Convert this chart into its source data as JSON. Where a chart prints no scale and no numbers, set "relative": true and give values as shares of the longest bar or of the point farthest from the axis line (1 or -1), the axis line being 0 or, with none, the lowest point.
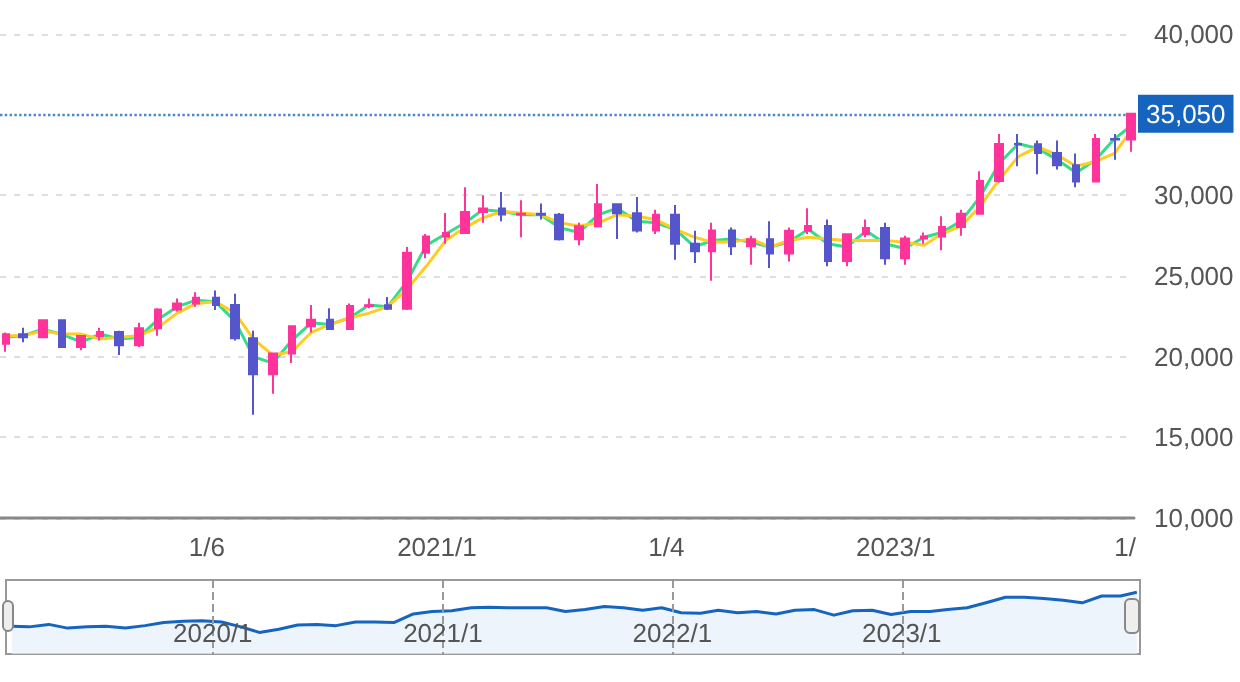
{
  "chart_data": [
    {
      "type": "candlestick",
      "x": [
        "2019-02-15",
        "2019-03-15",
        "2019-04-15",
        "2019-05-15",
        "2019-06-15",
        "2019-07-15",
        "2019-08-15",
        "2019-09-15",
        "2019-10-15",
        "2019-11-15",
        "2019-12-15",
        "2020-01-15",
        "2020-02-15",
        "2020-03-15",
        "2020-04-15",
        "2020-05-15",
        "2020-06-15",
        "2020-07-15",
        "2020-08-15",
        "2020-09-15",
        "2020-10-15",
        "2020-11-15",
        "2020-12-15",
        "2021-01-15",
        "2021-02-15",
        "2021-03-15",
        "2021-04-15",
        "2021-05-15",
        "2021-06-15",
        "2021-07-15",
        "2021-08-15",
        "2021-09-15",
        "2021-10-15",
        "2021-11-15",
        "2021-12-15",
        "2022-01-15",
        "2022-02-15",
        "2022-03-15",
        "2022-04-15",
        "2022-05-15",
        "2022-06-15",
        "2022-07-15",
        "2022-08-15",
        "2022-09-15",
        "2022-10-15",
        "2022-11-15",
        "2022-12-15",
        "2023-01-15",
        "2023-02-15",
        "2023-03-15",
        "2023-04-15",
        "2023-05-15",
        "2023-06-15",
        "2023-07-15",
        "2023-08-15",
        "2023-09-15",
        "2023-10-15",
        "2023-11-15",
        "2023-12-15",
        "2024-01-10"
      ],
      "series": [
        {
          "type": "candlestick",
          "ohlc": [
            [
              20800,
              21500,
              20300,
              21385
            ],
            [
              21385,
              21800,
              20900,
              21206
            ],
            [
              21206,
              22300,
              21200,
              22259
            ],
            [
              22259,
              22300,
              20600,
              20601
            ],
            [
              20601,
              21300,
              20400,
              21276
            ],
            [
              21276,
              21800,
              21000,
              21522
            ],
            [
              21522,
              21600,
              20100,
              20704
            ],
            [
              20704,
              22100,
              20600,
              21756
            ],
            [
              21756,
              23000,
              21300,
              22927
            ],
            [
              22927,
              23600,
              22800,
              23294
            ],
            [
              23294,
              24000,
              23100,
              23657
            ],
            [
              23657,
              24100,
              22900,
              23205
            ],
            [
              23205,
              23900,
              21000,
              21143
            ],
            [
              21143,
              21600,
              16400,
              18917
            ],
            [
              18917,
              20200,
              17700,
              20194
            ],
            [
              20194,
              21900,
              19600,
              21878
            ],
            [
              21878,
              23200,
              21500,
              22288
            ],
            [
              22288,
              23000,
              21700,
              21710
            ],
            [
              21710,
              23300,
              21700,
              23140
            ],
            [
              23140,
              23600,
              23000,
              23185
            ],
            [
              23185,
              23700,
              22900,
              22977
            ],
            [
              22977,
              26800,
              22900,
              26434
            ],
            [
              26434,
              27600,
              26100,
              27444
            ],
            [
              27444,
              28900,
              27000,
              27663
            ],
            [
              27663,
              30500,
              27600,
              28966
            ],
            [
              28966,
              30000,
              28300,
              29179
            ],
            [
              29179,
              30200,
              28400,
              28813
            ],
            [
              28813,
              29700,
              27400,
              28860
            ],
            [
              28860,
              29500,
              28500,
              28792
            ],
            [
              28792,
              28900,
              27200,
              27284
            ],
            [
              27284,
              28300,
              26900,
              28090
            ],
            [
              28090,
              30700,
              28000,
              29453
            ],
            [
              29453,
              29500,
              27300,
              28893
            ],
            [
              28893,
              29900,
              27700,
              27822
            ],
            [
              27822,
              29100,
              27600,
              28792
            ],
            [
              28792,
              29400,
              26000,
              27002
            ],
            [
              27002,
              27800,
              25800,
              26527
            ],
            [
              26527,
              28300,
              24700,
              27821
            ],
            [
              27821,
              28000,
              26300,
              26848
            ],
            [
              26848,
              27500,
              25700,
              27280
            ],
            [
              27280,
              28400,
              25500,
              26393
            ],
            [
              26393,
              28000,
              25900,
              27802
            ],
            [
              27802,
              29200,
              27600,
              28092
            ],
            [
              28092,
              28500,
              25600,
              25937
            ],
            [
              25937,
              27600,
              25600,
              27587
            ],
            [
              27587,
              28500,
              27400,
              27969
            ],
            [
              27969,
              28300,
              25700,
              26095
            ],
            [
              26095,
              27500,
              25700,
              27327
            ],
            [
              27327,
              27700,
              27000,
              27446
            ],
            [
              27446,
              28700,
              26600,
              28041
            ],
            [
              28041,
              29100,
              27500,
              28856
            ],
            [
              28856,
              31500,
              28800,
              30888
            ],
            [
              30888,
              33800,
              30800,
              33189
            ],
            [
              33189,
              33800,
              31800,
              33172
            ],
            [
              33172,
              33400,
              31300,
              32619
            ],
            [
              32619,
              33400,
              31600,
              31858
            ],
            [
              31858,
              32600,
              30500,
              30859
            ],
            [
              30859,
              33800,
              30800,
              33487
            ],
            [
              33487,
              33800,
              32200,
              33464
            ],
            [
              33464,
              35050,
              32700,
              35050
            ]
          ],
          "colors": [
            "#ff3399",
            "#5555cc",
            "#ff3399",
            "#5555cc",
            "#ff3399",
            "#ff3399",
            "#5555cc",
            "#ff3399",
            "#ff3399",
            "#ff3399",
            "#ff3399",
            "#5555cc",
            "#5555cc",
            "#5555cc",
            "#ff3399",
            "#ff3399",
            "#ff3399",
            "#5555cc",
            "#ff3399",
            "#ff3399",
            "#5555cc",
            "#ff3399",
            "#ff3399",
            "#ff3399",
            "#ff3399",
            "#ff3399",
            "#5555cc",
            "#ff3399",
            "#5555cc",
            "#5555cc",
            "#ff3399",
            "#ff3399",
            "#5555cc",
            "#5555cc",
            "#ff3399",
            "#5555cc",
            "#5555cc",
            "#ff3399",
            "#5555cc",
            "#ff3399",
            "#5555cc",
            "#ff3399",
            "#ff3399",
            "#5555cc",
            "#ff3399",
            "#ff3399",
            "#5555cc",
            "#ff3399",
            "#ff3399",
            "#ff3399",
            "#ff3399",
            "#ff3399",
            "#ff3399",
            "#5555cc",
            "#5555cc",
            "#5555cc",
            "#5555cc",
            "#ff3399",
            "#5555cc",
            "#ff3399"
          ]
        },
        {
          "type": "line",
          "color": "#33dd88",
          "values": [
            21200,
            21300,
            21700,
            21400,
            20900,
            21400,
            21100,
            21200,
            22300,
            23100,
            23500,
            23400,
            22200,
            20000,
            19600,
            21000,
            22100,
            22000,
            22400,
            23200,
            23100,
            24700,
            26900,
            27600,
            28300,
            29100,
            29000,
            28800,
            28800,
            28000,
            27700,
            28800,
            29200,
            28400,
            28300,
            27900,
            26800,
            27200,
            27300,
            27100,
            26800,
            27100,
            27900,
            27000,
            26800,
            27800,
            27000,
            26700,
            27400,
            27700,
            28400,
            29900,
            32000,
            33200,
            32900,
            32200,
            31400,
            32200,
            33500,
            34300
          ]
        },
        {
          "type": "line",
          "color": "#ffcc22",
          "values": [
            21300,
            21300,
            21600,
            21400,
            21400,
            21100,
            21200,
            21300,
            21800,
            22700,
            23300,
            23400,
            22700,
            21100,
            20100,
            20300,
            21500,
            22000,
            22400,
            22700,
            23100,
            24200,
            25600,
            27200,
            28000,
            28600,
            29000,
            28900,
            28800,
            28300,
            28100,
            28300,
            28800,
            28700,
            28500,
            27900,
            27400,
            27100,
            27100,
            27300,
            26800,
            27200,
            27400,
            27300,
            27200,
            27200,
            27200,
            27100,
            26900,
            27600,
            28100,
            29300,
            31000,
            32400,
            33000,
            32500,
            31800,
            32100,
            32600,
            34000
          ]
        }
      ],
      "xlim": [
        "2019-02-06",
        "2024-01-15"
      ],
      "ylim": [
        10000,
        40000
      ],
      "xticks": [
        {
          "value": "2020-01",
          "label": "1/6"
        },
        {
          "value": "2021-01",
          "label": "2021/1"
        },
        {
          "value": "2022-01",
          "label": "1/4"
        },
        {
          "value": "2023-01",
          "label": "2023/1"
        },
        {
          "value": "2024-01",
          "label": "1/"
        }
      ],
      "yticks": [
        {
          "value": 10000,
          "label": "10,000"
        },
        {
          "value": 15000,
          "label": "15,000"
        },
        {
          "value": 20000,
          "label": "20,000"
        },
        {
          "value": 25000,
          "label": "25,000"
        },
        {
          "value": 30000,
          "label": "30,000"
        },
        {
          "value": 40000,
          "label": "40,000"
        }
      ],
      "ref_lines": [
        {
          "axis": "y",
          "value": 35050,
          "label": "35,050",
          "color": "#4a86d4",
          "line_style": "dotted"
        }
      ],
      "grid": "y"
    },
    {
      "type": "area",
      "relative": true,
      "color": "#1565c0",
      "x": [
        "2019-02-15",
        "2019-03-15",
        "2019-04-15",
        "2019-05-15",
        "2019-06-15",
        "2019-07-15",
        "2019-08-15",
        "2019-09-15",
        "2019-10-15",
        "2019-11-15",
        "2019-12-15",
        "2020-01-15",
        "2020-02-15",
        "2020-03-15",
        "2020-04-15",
        "2020-05-15",
        "2020-06-15",
        "2020-07-15",
        "2020-08-15",
        "2020-09-15",
        "2020-10-15",
        "2020-11-15",
        "2020-12-15",
        "2021-01-15",
        "2021-02-15",
        "2021-03-15",
        "2021-04-15",
        "2021-05-15",
        "2021-06-15",
        "2021-07-15",
        "2021-08-15",
        "2021-09-15",
        "2021-10-15",
        "2021-11-15",
        "2021-12-15",
        "2022-01-15",
        "2022-02-15",
        "2022-03-15",
        "2022-04-15",
        "2022-05-15",
        "2022-06-15",
        "2022-07-15",
        "2022-08-15",
        "2022-09-15",
        "2022-10-15",
        "2022-11-15",
        "2022-12-15",
        "2023-01-15",
        "2023-02-15",
        "2023-03-15",
        "2023-04-15",
        "2023-05-15",
        "2023-06-15",
        "2023-07-15",
        "2023-08-15",
        "2023-09-15",
        "2023-10-15",
        "2023-11-15",
        "2023-12-15",
        "2024-01-10"
      ],
      "values": [
        0.45,
        0.44,
        0.48,
        0.42,
        0.44,
        0.45,
        0.42,
        0.46,
        0.51,
        0.53,
        0.54,
        0.52,
        0.44,
        0.35,
        0.4,
        0.47,
        0.48,
        0.46,
        0.52,
        0.52,
        0.51,
        0.65,
        0.69,
        0.7,
        0.75,
        0.76,
        0.75,
        0.75,
        0.75,
        0.69,
        0.72,
        0.77,
        0.75,
        0.71,
        0.75,
        0.67,
        0.66,
        0.71,
        0.67,
        0.69,
        0.65,
        0.71,
        0.72,
        0.63,
        0.7,
        0.71,
        0.64,
        0.69,
        0.69,
        0.72,
        0.75,
        0.83,
        0.92,
        0.92,
        0.9,
        0.87,
        0.83,
        0.94,
        0.94,
        1
      ],
      "xlim": [
        "2019-02-06",
        "2024-01-15"
      ],
      "xticks": [
        {
          "value": "2020-01",
          "label": "2020/1"
        },
        {
          "value": "2021-01",
          "label": "2021/1"
        },
        {
          "value": "2022-01",
          "label": "2022/1"
        },
        {
          "value": "2023-01",
          "label": "2023/1"
        }
      ],
      "grid": "x"
    }
  ]
}
